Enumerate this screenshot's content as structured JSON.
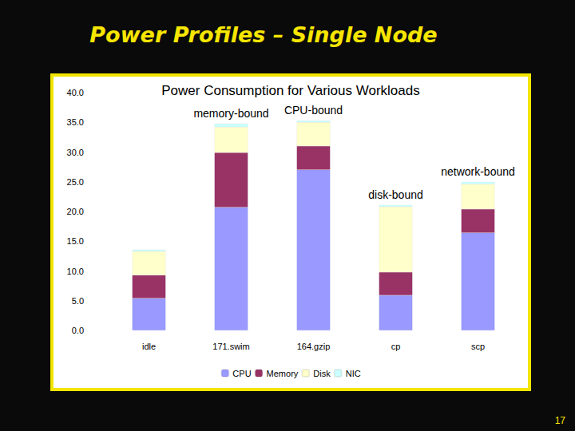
{
  "slide_title": "Power Profiles – Single Node",
  "page_number": "17",
  "chart_data": {
    "type": "bar",
    "title": "Power Consumption for Various Workloads",
    "categories": [
      "idle",
      "171.swim",
      "164.gzip",
      "cp",
      "scp"
    ],
    "series": [
      {
        "name": "CPU",
        "color": "#9999ff",
        "values": [
          5.4,
          20.7,
          27.0,
          5.9,
          16.4
        ]
      },
      {
        "name": "Memory",
        "color": "#993366",
        "values": [
          3.9,
          9.2,
          4.0,
          3.9,
          4.0
        ]
      },
      {
        "name": "Disk",
        "color": "#ffffcc",
        "values": [
          4.0,
          4.3,
          4.0,
          11.0,
          4.2
        ]
      },
      {
        "name": "NIC",
        "color": "#ccffff",
        "values": [
          0.3,
          0.6,
          0.3,
          0.3,
          0.4
        ]
      }
    ],
    "stacked": true,
    "ylim": [
      0,
      40
    ],
    "yticks": [
      {
        "value": 0,
        "label": "0.0"
      },
      {
        "value": 5,
        "label": "5.0"
      },
      {
        "value": 10,
        "label": "10.0"
      },
      {
        "value": 15,
        "label": "15.0"
      },
      {
        "value": 20,
        "label": "20.0"
      },
      {
        "value": 25,
        "label": "25.0"
      },
      {
        "value": 30,
        "label": "30.0"
      },
      {
        "value": 35,
        "label": "35.0"
      },
      {
        "value": 40,
        "label": "40.0"
      }
    ],
    "grid": false,
    "legend": "bottom",
    "annotations": [
      {
        "text": "memory-bound",
        "category": "171.swim"
      },
      {
        "text": "CPU-bound",
        "category": "164.gzip"
      },
      {
        "text": "disk-bound",
        "category": "cp"
      },
      {
        "text": "network-bound",
        "category": "scp"
      }
    ]
  }
}
